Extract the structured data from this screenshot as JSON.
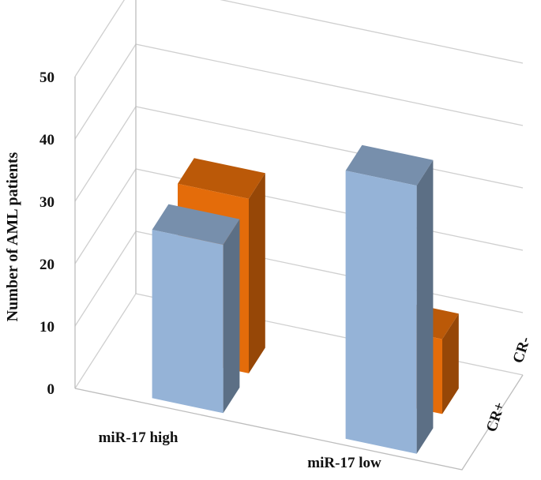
{
  "chart_data": {
    "type": "bar",
    "subtype": "3d-clustered-depth",
    "title": "",
    "ylabel": "Number of AML patients",
    "xlabel": "",
    "ylim": [
      0,
      50
    ],
    "yticks": [
      "0",
      "10",
      "20",
      "30",
      "40",
      "50"
    ],
    "categories": [
      "miR-17 high",
      "miR-17 low"
    ],
    "depth_labels": [
      "CR+",
      "CR-"
    ],
    "series": [
      {
        "name": "CR+",
        "color": "#95b3d7",
        "values": [
          27,
          43
        ]
      },
      {
        "name": "CR-",
        "color": "#e46c0a",
        "values": [
          28,
          12
        ]
      }
    ],
    "grid": true
  }
}
